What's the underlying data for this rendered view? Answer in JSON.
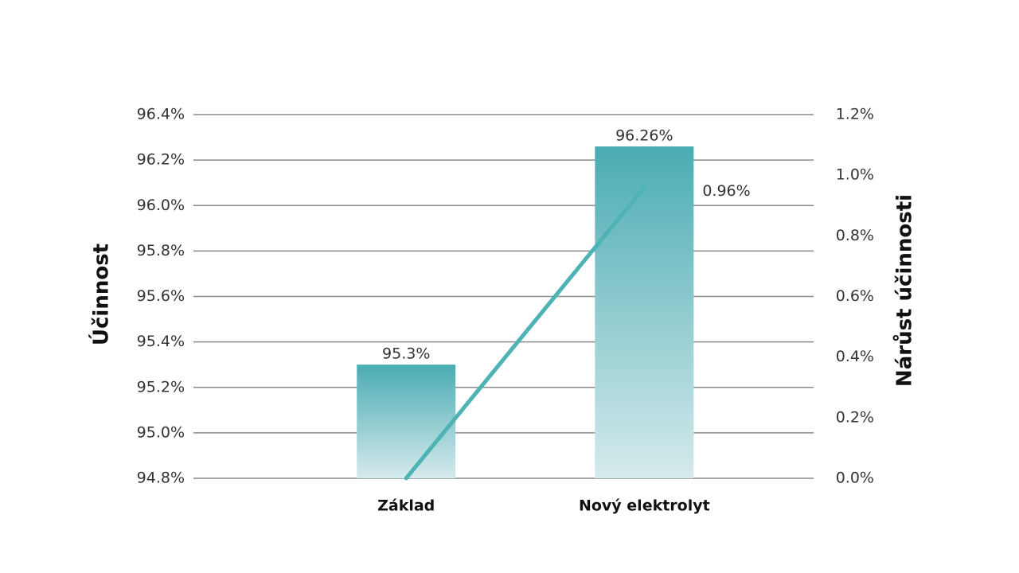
{
  "chart_data": {
    "type": "bar",
    "ylabel": "Účinnost",
    "y2label": "Nárůst účinnosti",
    "categories": [
      "Základ",
      "Nový elektrolyt"
    ],
    "series": [
      {
        "type": "bar",
        "color": "#4aacb3",
        "values": [
          95.3,
          96.26
        ],
        "value_labels": [
          "95.3%",
          "96.26%"
        ]
      },
      {
        "type": "line",
        "axis": "y2",
        "color": "#4db3b5",
        "values": [
          0,
          0.96
        ],
        "value_labels": [
          null,
          "0.96%"
        ]
      }
    ],
    "ylim": [
      94.8,
      96.4
    ],
    "yticks": [
      {
        "value": 94.8,
        "label": "94.8%"
      },
      {
        "value": 95.0,
        "label": "95.0%"
      },
      {
        "value": 95.2,
        "label": "95.2%"
      },
      {
        "value": 95.4,
        "label": "95.4%"
      },
      {
        "value": 95.6,
        "label": "95.6%"
      },
      {
        "value": 95.8,
        "label": "95.8%"
      },
      {
        "value": 96.0,
        "label": "96.0%"
      },
      {
        "value": 96.2,
        "label": "96.2%"
      },
      {
        "value": 96.4,
        "label": "96.4%"
      }
    ],
    "y2lim": [
      0,
      1.2
    ],
    "y2ticks": [
      {
        "value": 0,
        "label": "0.0%"
      },
      {
        "value": 0.2,
        "label": "0.2%"
      },
      {
        "value": 0.4,
        "label": "0.4%"
      },
      {
        "value": 0.6,
        "label": "0.6%"
      },
      {
        "value": 0.8,
        "label": "0.8%"
      },
      {
        "value": 1.0,
        "label": "1.0%"
      },
      {
        "value": 1.2,
        "label": "1.2%"
      }
    ],
    "grid": true
  }
}
